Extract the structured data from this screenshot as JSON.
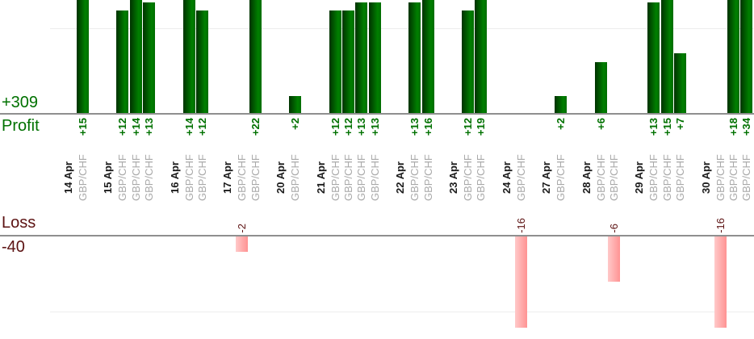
{
  "labels": {
    "profit_total": "+309",
    "profit_title": "Profit",
    "loss_title": "Loss",
    "loss_total": "-40"
  },
  "colors": {
    "profit_text": "#007100",
    "loss_text": "#5c1212",
    "bar_green_left": "#003200",
    "bar_green_right": "#007f00",
    "bar_pink_left": "#ffc9c9",
    "bar_pink_right": "#ff9393",
    "axis_line": "#8f8f8f",
    "gridline": "#ededed",
    "date_text": "#1a1a1a",
    "symbol_text": "#a9a9a9"
  },
  "chart_data": {
    "type": "bar",
    "title": "",
    "panels": [
      {
        "name": "Profit",
        "total": 309,
        "total_label": "+309",
        "direction": "up",
        "gridline_value": 10,
        "visible_max": 13.3
      },
      {
        "name": "Loss",
        "total": -40,
        "total_label": "-40",
        "direction": "down",
        "gridline_value": -10,
        "visible_min": -12.2
      }
    ],
    "grid": "single faint line per panel at +/-10",
    "legend_position": "none",
    "xlabel": "",
    "ylabel": "",
    "groups": [
      {
        "date": "14 Apr",
        "trades": [
          {
            "symbol": "GBP/CHF",
            "value": 15,
            "label": "+15"
          }
        ]
      },
      {
        "date": "15 Apr",
        "trades": [
          {
            "symbol": "GBP/CHF",
            "value": 12,
            "label": "+12"
          },
          {
            "symbol": "GBP/CHF",
            "value": 14,
            "label": "+14"
          },
          {
            "symbol": "GBP/CHF",
            "value": 13,
            "label": "+13"
          }
        ]
      },
      {
        "date": "16 Apr",
        "trades": [
          {
            "symbol": "GBP/CHF",
            "value": 14,
            "label": "+14"
          },
          {
            "symbol": "GBP/CHF",
            "value": 12,
            "label": "+12"
          }
        ]
      },
      {
        "date": "17 Apr",
        "trades": [
          {
            "symbol": "GBP/CHF",
            "value": -2,
            "label": "-2"
          },
          {
            "symbol": "GBP/CHF",
            "value": 22,
            "label": "+22"
          }
        ]
      },
      {
        "date": "20 Apr",
        "trades": [
          {
            "symbol": "GBP/CHF",
            "value": 2,
            "label": "+2"
          }
        ]
      },
      {
        "date": "21 Apr",
        "trades": [
          {
            "symbol": "GBP/CHF",
            "value": 12,
            "label": "+12"
          },
          {
            "symbol": "GBP/CHF",
            "value": 12,
            "label": "+12"
          },
          {
            "symbol": "GBP/CHF",
            "value": 13,
            "label": "+13"
          },
          {
            "symbol": "GBP/CHF",
            "value": 13,
            "label": "+13"
          }
        ]
      },
      {
        "date": "22 Apr",
        "trades": [
          {
            "symbol": "GBP/CHF",
            "value": 13,
            "label": "+13"
          },
          {
            "symbol": "GBP/CHF",
            "value": 16,
            "label": "+16"
          }
        ]
      },
      {
        "date": "23 Apr",
        "trades": [
          {
            "symbol": "GBP/CHF",
            "value": 12,
            "label": "+12"
          },
          {
            "symbol": "GBP/CHF",
            "value": 19,
            "label": "+19"
          }
        ]
      },
      {
        "date": "24 Apr",
        "trades": [
          {
            "symbol": "GBP/CHF",
            "value": -16,
            "label": "-16"
          }
        ]
      },
      {
        "date": "27 Apr",
        "trades": [
          {
            "symbol": "GBP/CHF",
            "value": 2,
            "label": "+2"
          }
        ]
      },
      {
        "date": "28 Apr",
        "trades": [
          {
            "symbol": "GBP/CHF",
            "value": 6,
            "label": "+6"
          },
          {
            "symbol": "GBP/CHF",
            "value": -6,
            "label": "-6"
          }
        ]
      },
      {
        "date": "29 Apr",
        "trades": [
          {
            "symbol": "GBP/CHF",
            "value": 13,
            "label": "+13"
          },
          {
            "symbol": "GBP/CHF",
            "value": 15,
            "label": "+15"
          },
          {
            "symbol": "GBP/CHF",
            "value": 7,
            "label": "+7"
          }
        ]
      },
      {
        "date": "30 Apr",
        "trades": [
          {
            "symbol": "GBP/CHF",
            "value": -16,
            "label": "-16"
          },
          {
            "symbol": "GBP/CHF",
            "value": 18,
            "label": "+18"
          },
          {
            "symbol": "GBP/CHF",
            "value": 34,
            "label": "+34"
          }
        ]
      }
    ]
  }
}
